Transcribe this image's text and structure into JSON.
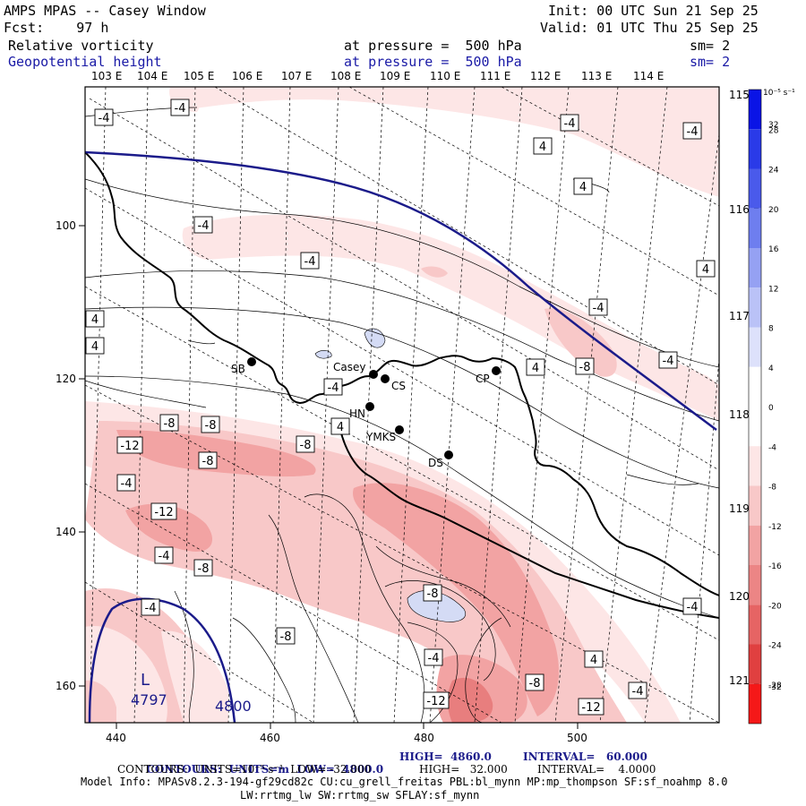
{
  "header": {
    "title": "AMPS MPAS -- Casey Window",
    "init": "Init: 00 UTC Sun 21 Sep 25",
    "fcst": "Fcst:    97 h",
    "valid": "Valid: 01 UTC Thu 25 Sep 25",
    "field1": "Relative vorticity",
    "field1_level": "at pressure =  500 hPa",
    "field1_sm": "sm= 2",
    "field2": "Geopotential height",
    "field2_level": "at pressure =  500 hPa",
    "field2_sm": "sm= 2"
  },
  "colors": {
    "height_contour": "#1b1b8a",
    "coast": "#000000",
    "pos_fill_light": "#d4dbf5",
    "neg_fill_1": "#fde6e6",
    "neg_fill_2": "#f8c8c8",
    "neg_fill_3": "#f2a3a3",
    "neg_fill_4": "#e87e7e",
    "neg_fill_5": "#dc5a5a"
  },
  "map": {
    "top_lon_labels": [
      "103 E",
      "104 E",
      "105 E",
      "106 E",
      "107 E",
      "108 E",
      "109 E",
      "110 E",
      "111 E",
      "112 E",
      "113 E",
      "114 E"
    ],
    "right_lon_labels": [
      "115 E",
      "116 E",
      "117 E",
      "118 E",
      "119 E",
      "120 E",
      "121 E"
    ],
    "left_axis": [
      "100",
      "120",
      "140",
      "160"
    ],
    "bottom_axis": [
      "440",
      "460",
      "480",
      "500"
    ],
    "stations": [
      {
        "name": "SB"
      },
      {
        "name": "Casey"
      },
      {
        "name": "CS"
      },
      {
        "name": "CP"
      },
      {
        "name": "HN"
      },
      {
        "name": "YMKS"
      },
      {
        "name": "DS"
      }
    ],
    "low_label": "L",
    "low_value": "4797",
    "height_label": "4800",
    "vort_labels": [
      "-4",
      "-4",
      "-4",
      "4",
      "-4",
      "4",
      "-4",
      "-4",
      "4",
      "4",
      "4",
      "-4",
      "4",
      "-4",
      "-8",
      "-4",
      "4",
      "-8",
      "-8",
      "-8",
      "-12",
      "-8",
      "-4",
      "-12",
      "-4",
      "-8",
      "-4",
      "-8",
      "-8",
      "-4",
      "4",
      "-8",
      "-12",
      "-4",
      "-12",
      "-4"
    ]
  },
  "colorbar": {
    "unit": "10⁻⁵ s⁻¹",
    "ticks": [
      "32",
      "28",
      "24",
      "20",
      "16",
      "12",
      "8",
      "4",
      "0",
      "-4",
      "-8",
      "-12",
      "-16",
      "-20",
      "-24",
      "-28",
      "-32"
    ]
  },
  "footer": {
    "contours1_a": "CONTOURS:  UNITS=m  LOW=  4800.0",
    "contours1_b": "HIGH=  4860.0",
    "contours1_c": "INTERVAL=   60.000",
    "contours2_a": "CONTOURS:  UNITS=10⁻⁵ s⁻¹  LOW= -32.000",
    "contours2_b": "HIGH=   32.000",
    "contours2_c": "INTERVAL=    4.0000",
    "model_info": "Model Info: MPASv8.2.3-194-gf29cd82c CU:cu_grell_freitas PBL:bl_mynn MP:mp_thompson SF:sf_noahmp 8.0",
    "model_info2": "LW:rrtmg_lw SW:rrtmg_sw SFLAY:sf_mynn"
  }
}
